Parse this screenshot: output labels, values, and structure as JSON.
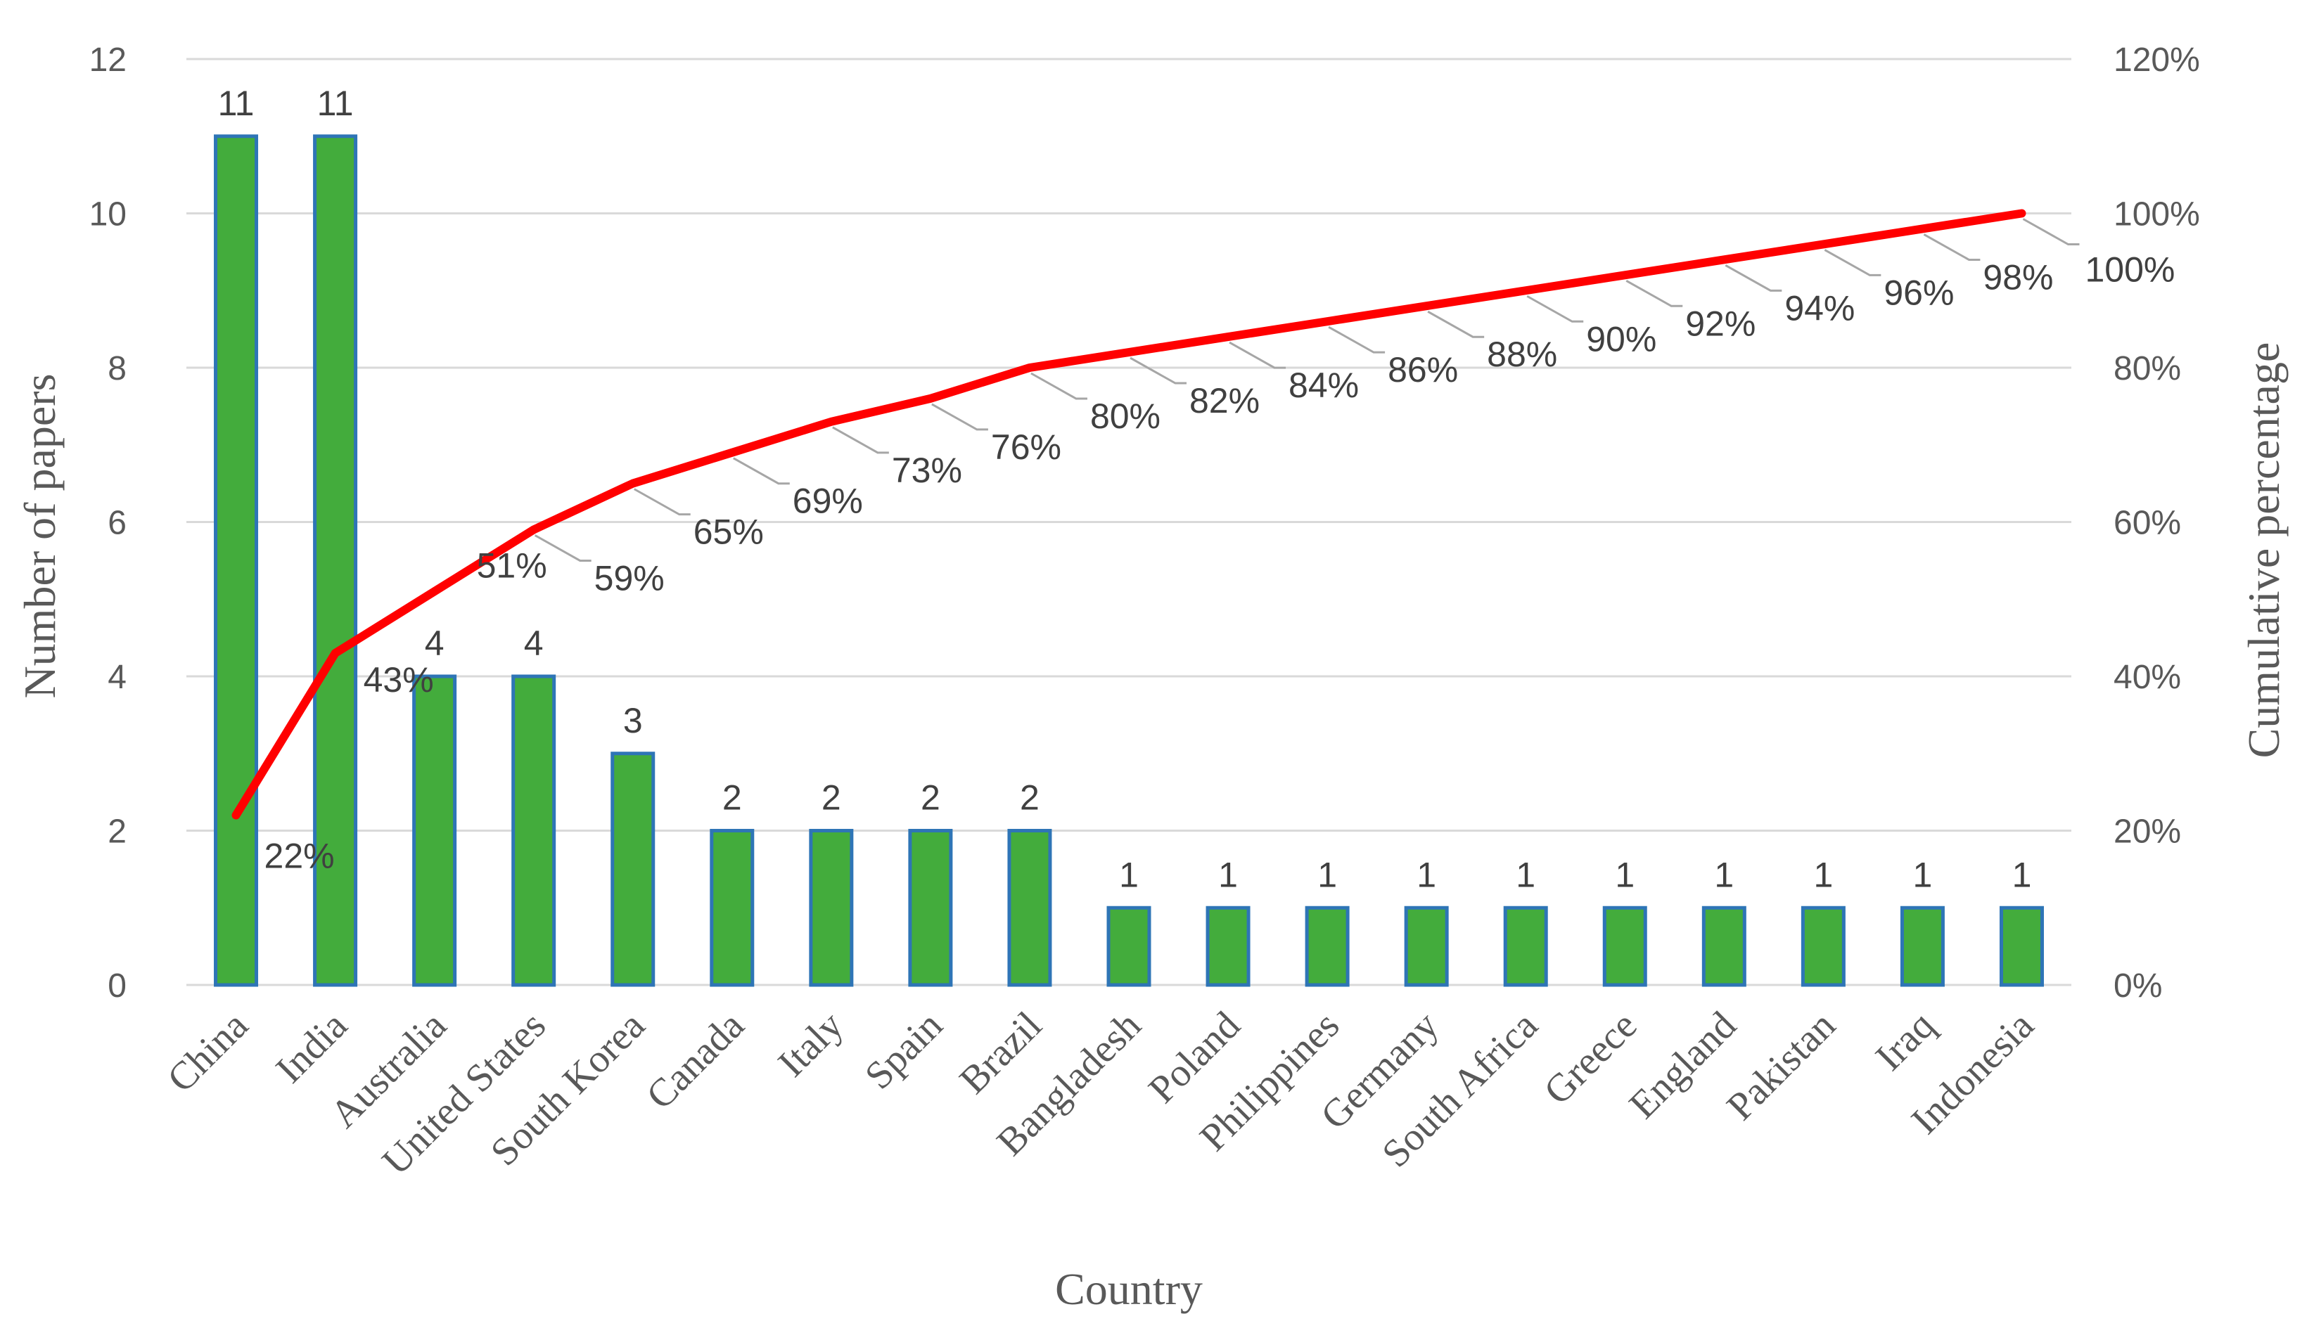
{
  "chart_data": {
    "type": "bar",
    "xlabel": "Country",
    "ylabel": "Number of papers",
    "y2label": "Cumulative percentage",
    "ylim": [
      0,
      12
    ],
    "y2lim": [
      0,
      120
    ],
    "yticks": [
      "0",
      "2",
      "4",
      "6",
      "8",
      "10",
      "12"
    ],
    "y2ticks": [
      "0%",
      "20%",
      "40%",
      "60%",
      "80%",
      "100%",
      "120%"
    ],
    "grid": true,
    "categories": [
      "China",
      "India",
      "Australia",
      "United States",
      "South Korea",
      "Canada",
      "Italy",
      "Spain",
      "Brazil",
      "Bangladesh",
      "Poland",
      "Philippines",
      "Germany",
      "South Africa",
      "Greece",
      "England",
      "Pakistan",
      "Iraq",
      "Indonesia"
    ],
    "series": [
      {
        "type": "bar",
        "values": [
          11,
          11,
          4,
          4,
          3,
          2,
          2,
          2,
          2,
          1,
          1,
          1,
          1,
          1,
          1,
          1,
          1,
          1,
          1
        ],
        "labels": [
          "11",
          "11",
          "4",
          "4",
          "3",
          "2",
          "2",
          "2",
          "2",
          "1",
          "1",
          "1",
          "1",
          "1",
          "1",
          "1",
          "1",
          "1",
          "1"
        ],
        "color": "#43AC3C",
        "edge_color": "#2E75B6"
      },
      {
        "type": "line",
        "axis": "secondary",
        "values": [
          22,
          43,
          51,
          59,
          65,
          69,
          73,
          76,
          80,
          82,
          84,
          86,
          88,
          90,
          92,
          94,
          96,
          98,
          100
        ],
        "labels": [
          "22%",
          "43%",
          "51%",
          "59%",
          "65%",
          "69%",
          "73%",
          "76%",
          "80%",
          "82%",
          "84%",
          "86%",
          "88%",
          "90%",
          "92%",
          "94%",
          "96%",
          "98%",
          "100%"
        ],
        "color": "#FF0000"
      }
    ]
  }
}
